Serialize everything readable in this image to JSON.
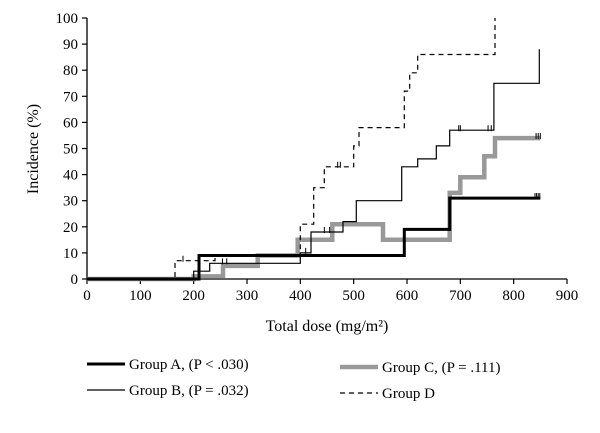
{
  "chart_data": {
    "type": "line",
    "step": true,
    "xlabel": "Total dose (mg/m²)",
    "ylabel": "Incidence (%)",
    "xlim": [
      0,
      900
    ],
    "ylim": [
      0,
      100
    ],
    "xticks": [
      0,
      100,
      200,
      300,
      400,
      500,
      600,
      700,
      800,
      900
    ],
    "yticks": [
      0,
      10,
      20,
      30,
      40,
      50,
      60,
      70,
      80,
      90,
      100
    ],
    "grid": false,
    "legend_position": "bottom",
    "series": [
      {
        "name": "Group A, (P < .030)",
        "style": "thick",
        "color": "#000000",
        "x": [
          0,
          210,
          210,
          400,
          400,
          595,
          595,
          680,
          680,
          850
        ],
        "y": [
          0,
          0,
          9,
          9,
          9,
          9,
          19,
          19,
          31,
          31
        ],
        "censor_x": [
          840,
          843,
          846,
          849
        ],
        "censor_y": [
          31,
          31,
          31,
          31
        ]
      },
      {
        "name": "Group B, (P = .032)",
        "style": "thin",
        "color": "#000000",
        "x": [
          0,
          200,
          200,
          230,
          230,
          400,
          400,
          420,
          420,
          480,
          480,
          505,
          505,
          590,
          590,
          620,
          620,
          655,
          655,
          680,
          680,
          763,
          763,
          848,
          848
        ],
        "y": [
          0,
          0,
          3,
          3,
          6,
          6,
          10,
          10,
          18,
          18,
          22,
          22,
          30,
          30,
          43,
          43,
          46,
          46,
          51,
          51,
          57,
          57,
          75,
          75,
          88
        ],
        "censor_x": [
          254,
          262,
          410,
          445,
          455,
          697,
          700,
          752,
          758
        ],
        "censor_y": [
          6,
          6,
          10,
          18,
          18,
          57,
          57,
          57,
          57
        ]
      },
      {
        "name": "Group C, (P = .111)",
        "style": "thick-gray",
        "color": "#999999",
        "x": [
          0,
          200,
          200,
          255,
          255,
          320,
          320,
          395,
          395,
          460,
          460,
          555,
          555,
          680,
          680,
          700,
          700,
          745,
          745,
          765,
          765,
          850
        ],
        "y": [
          0,
          0,
          1,
          1,
          5,
          5,
          9,
          9,
          15,
          15,
          21,
          21,
          15,
          15,
          33,
          33,
          39,
          39,
          47,
          47,
          54,
          54
        ],
        "censor_x": [
          842,
          846,
          850
        ],
        "censor_y": [
          54,
          54,
          54
        ]
      },
      {
        "name": "Group D",
        "style": "dashed",
        "color": "#000000",
        "x": [
          0,
          165,
          165,
          240,
          240,
          400,
          400,
          425,
          425,
          445,
          445,
          500,
          500,
          510,
          510,
          595,
          595,
          605,
          605,
          620,
          620,
          765,
          765
        ],
        "y": [
          0,
          0,
          7,
          7,
          9,
          9,
          21,
          21,
          35,
          35,
          43,
          43,
          51,
          51,
          58,
          58,
          72,
          72,
          79,
          79,
          86,
          86,
          100
        ],
        "censor_x": [
          180,
          470,
          475
        ],
        "censor_y": [
          7,
          43,
          43
        ]
      }
    ]
  }
}
